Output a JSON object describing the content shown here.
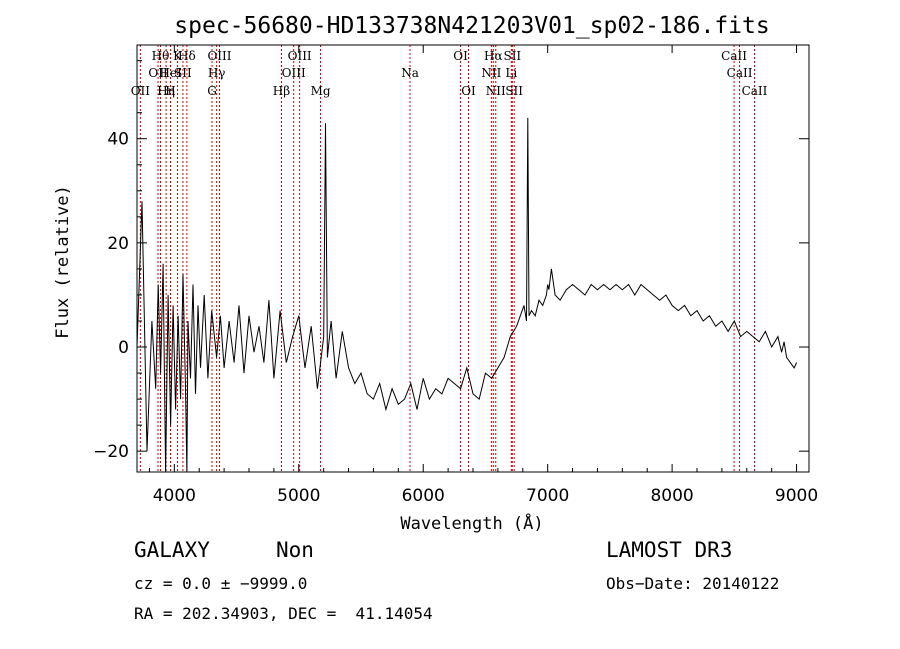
{
  "chart_data": {
    "type": "line",
    "title": "spec-56680-HD133738N421203V01_sp02-186.fits",
    "xlabel": "Wavelength (Å)",
    "ylabel": "Flux (relative)",
    "xlim": [
      3700,
      9100
    ],
    "ylim": [
      -24,
      58
    ],
    "xticks": [
      4000,
      5000,
      6000,
      7000,
      8000,
      9000
    ],
    "yticks": [
      -20,
      0,
      20,
      40
    ],
    "tick_labels": {
      "x": [
        "4000",
        "5000",
        "6000",
        "7000",
        "8000",
        "9000"
      ],
      "y": [
        "−20",
        "0",
        "20",
        "40"
      ]
    },
    "series": [
      {
        "name": "flux",
        "x": [
          3700,
          3740,
          3780,
          3820,
          3850,
          3870,
          3890,
          3910,
          3930,
          3950,
          3970,
          3990,
          4010,
          4030,
          4050,
          4070,
          4090,
          4101,
          4110,
          4130,
          4150,
          4170,
          4190,
          4210,
          4240,
          4270,
          4300,
          4340,
          4370,
          4400,
          4440,
          4480,
          4520,
          4560,
          4600,
          4640,
          4680,
          4720,
          4760,
          4800,
          4850,
          4900,
          4950,
          5000,
          5050,
          5100,
          5150,
          5200,
          5215,
          5230,
          5260,
          5300,
          5350,
          5400,
          5450,
          5500,
          5550,
          5600,
          5650,
          5700,
          5750,
          5800,
          5850,
          5900,
          5950,
          6000,
          6050,
          6100,
          6150,
          6200,
          6250,
          6300,
          6350,
          6400,
          6450,
          6500,
          6550,
          6600,
          6650,
          6700,
          6750,
          6780,
          6810,
          6830,
          6840,
          6850,
          6870,
          6900,
          6930,
          6960,
          6990,
          7000,
          7010,
          7030,
          7060,
          7100,
          7150,
          7200,
          7250,
          7300,
          7350,
          7400,
          7450,
          7500,
          7550,
          7600,
          7650,
          7700,
          7750,
          7800,
          7850,
          7900,
          7950,
          8000,
          8050,
          8100,
          8150,
          8200,
          8250,
          8300,
          8350,
          8400,
          8450,
          8500,
          8550,
          8600,
          8650,
          8700,
          8750,
          8800,
          8850,
          8880,
          8900,
          8920,
          8950,
          8980,
          9000
        ],
        "y": [
          0,
          28,
          -20,
          5,
          -8,
          12,
          -5,
          16,
          -24,
          10,
          -15,
          8,
          -12,
          6,
          -10,
          14,
          -8,
          -24,
          5,
          -6,
          12,
          -9,
          8,
          -4,
          10,
          -6,
          7,
          -2,
          6,
          -4,
          5,
          -3,
          8,
          -5,
          6,
          -1,
          4,
          -3,
          9,
          -6,
          7,
          -3,
          2,
          6,
          -4,
          4,
          -8,
          2,
          43,
          -2,
          5,
          -6,
          3,
          -4,
          -7,
          -5,
          -9,
          -10,
          -7,
          -12,
          -8,
          -11,
          -10,
          -7,
          -12,
          -6,
          -10,
          -8,
          -9,
          -6,
          -7,
          -8,
          -4,
          -9,
          -10,
          -5,
          -6,
          -4,
          -2,
          2,
          4,
          6,
          8,
          5,
          44,
          6,
          7,
          6,
          9,
          8,
          10,
          12,
          11,
          15,
          10,
          9,
          11,
          12,
          11,
          10,
          12,
          11,
          12,
          11,
          12,
          11,
          12,
          10,
          12,
          11,
          10,
          9,
          10,
          8,
          7,
          8,
          6,
          7,
          5,
          6,
          4,
          5,
          3,
          5,
          2,
          3,
          2,
          1,
          3,
          0,
          2,
          -1,
          1,
          -2,
          -3,
          -4,
          -3
        ]
      }
    ],
    "line_markers": [
      {
        "wavelength": 3727,
        "labels": [
          "OII"
        ],
        "row": [
          3
        ]
      },
      {
        "wavelength": 3869,
        "labels": [
          "OII"
        ],
        "row": [
          2
        ]
      },
      {
        "wavelength": 3889,
        "labels": [
          "Hθ"
        ],
        "row": [
          1
        ]
      },
      {
        "wavelength": 3934,
        "labels": [
          "Hη"
        ],
        "row": [
          3
        ]
      },
      {
        "wavelength": 3970,
        "labels": [
          "HeI"
        ],
        "row": [
          2
        ]
      },
      {
        "wavelength": 3969,
        "labels": [
          "H"
        ],
        "row": [
          3
        ]
      },
      {
        "wavelength": 4026,
        "labels": [
          "K"
        ],
        "row": [
          1
        ]
      },
      {
        "wavelength": 4069,
        "labels": [
          "SII"
        ],
        "row": [
          2
        ]
      },
      {
        "wavelength": 4101,
        "labels": [
          "Hδ"
        ],
        "row": [
          1
        ]
      },
      {
        "wavelength": 4303,
        "labels": [
          "G"
        ],
        "row": [
          3
        ]
      },
      {
        "wavelength": 4340,
        "labels": [
          "Hγ"
        ],
        "row": [
          2
        ]
      },
      {
        "wavelength": 4363,
        "labels": [
          "OIII"
        ],
        "row": [
          1
        ]
      },
      {
        "wavelength": 4861,
        "labels": [
          "Hβ"
        ],
        "row": [
          3
        ]
      },
      {
        "wavelength": 4959,
        "labels": [
          "OIII"
        ],
        "row": [
          2
        ]
      },
      {
        "wavelength": 5007,
        "labels": [
          "OIII"
        ],
        "row": [
          1
        ]
      },
      {
        "wavelength": 5175,
        "labels": [
          "Mg"
        ],
        "row": [
          3
        ]
      },
      {
        "wavelength": 5894,
        "labels": [
          "Na"
        ],
        "row": [
          2
        ]
      },
      {
        "wavelength": 6300,
        "labels": [
          "OI"
        ],
        "row": [
          1
        ]
      },
      {
        "wavelength": 6364,
        "labels": [
          "OI"
        ],
        "row": [
          3
        ]
      },
      {
        "wavelength": 6548,
        "labels": [
          "NII"
        ],
        "row": [
          2
        ]
      },
      {
        "wavelength": 6563,
        "labels": [
          "Hα"
        ],
        "row": [
          1
        ]
      },
      {
        "wavelength": 6583,
        "labels": [
          "NII"
        ],
        "row": [
          3
        ]
      },
      {
        "wavelength": 6708,
        "labels": [
          "Li"
        ],
        "row": [
          2
        ]
      },
      {
        "wavelength": 6716,
        "labels": [
          "SII"
        ],
        "row": [
          1
        ]
      },
      {
        "wavelength": 6731,
        "labels": [
          "SII"
        ],
        "row": [
          3
        ]
      },
      {
        "wavelength": 8498,
        "labels": [
          "CaII"
        ],
        "row": [
          1
        ]
      },
      {
        "wavelength": 8542,
        "labels": [
          "CaII"
        ],
        "row": [
          2
        ]
      },
      {
        "wavelength": 8662,
        "labels": [
          "CaII"
        ],
        "row": [
          3
        ]
      }
    ],
    "grid": false,
    "line_color": "#000000",
    "marker_color": "#cc0000"
  },
  "info": {
    "class": "GALAXY",
    "subclass": "Non",
    "survey": "LAMOST DR3",
    "redshift": "cz = 0.0 ± −9999.0",
    "obs_date": "Obs−Date: 20140122",
    "coords": "RA = 202.34903, DEC =  41.14054"
  }
}
